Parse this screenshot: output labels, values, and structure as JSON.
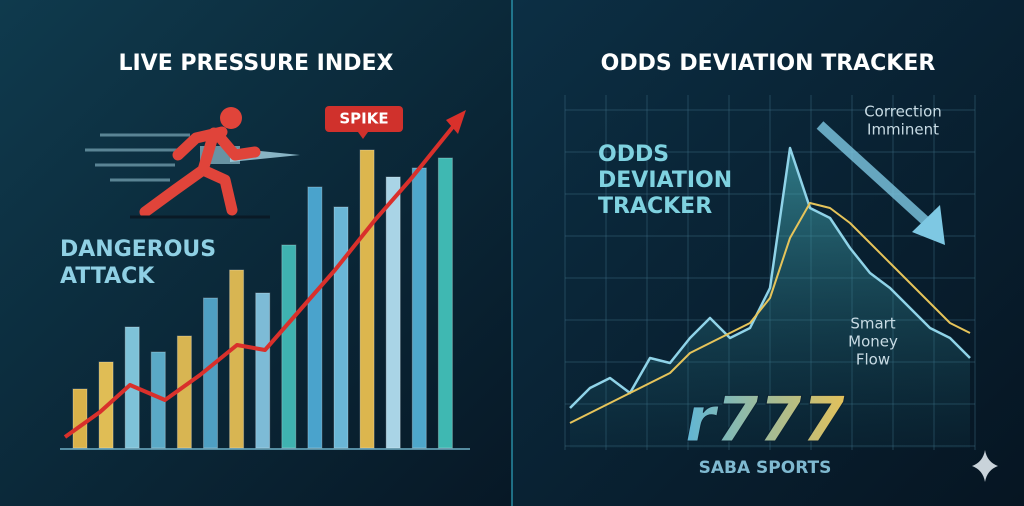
{
  "chart_data": [
    {
      "type": "bar",
      "title": "LIVE PRESSURE INDEX",
      "annotation": "SPIKE",
      "label_lines": [
        "DANGEROUS",
        "ATTACK"
      ],
      "values": [
        59,
        86,
        121,
        96,
        112,
        150,
        178,
        155,
        203,
        261,
        241,
        298,
        271,
        280,
        290
      ],
      "colors": [
        "#d9b24a",
        "#e0bd55",
        "#7ec2d8",
        "#5aa9c6",
        "#d8b552",
        "#4f9fc2",
        "#d8b552",
        "#7dbbd6",
        "#3fb2b0",
        "#4aa3cc",
        "#6ab6d6",
        "#dcb64e",
        "#a9d4e6",
        "#4ea7cb",
        "#3fb8b2"
      ],
      "trend": {
        "color": "#d9302b",
        "x": [
          15,
          50,
          80,
          115,
          150,
          187,
          215,
          250,
          285,
          325,
          360,
          410
        ],
        "values": [
          11,
          36,
          63,
          48,
          73,
          103,
          98,
          138,
          178,
          228,
          268,
          330
        ]
      },
      "xlim": [
        0,
        450
      ],
      "ylim": [
        0,
        340
      ]
    },
    {
      "type": "line",
      "title": "ODDS DEVIATION TRACKER",
      "label_lines": [
        "ODDS",
        "DEVIATION",
        "TRACKER"
      ],
      "annotations": [
        [
          "Correction",
          "Imminent"
        ],
        [
          "Smart",
          "Money",
          "Flow"
        ]
      ],
      "x": [
        0,
        20,
        40,
        60,
        80,
        100,
        120,
        140,
        160,
        180,
        200,
        220,
        240,
        260,
        280,
        300,
        320,
        340,
        360,
        380,
        400
      ],
      "series": [
        {
          "color": "#8fd3e8",
          "values": [
            40,
            60,
            70,
            55,
            90,
            85,
            110,
            130,
            110,
            120,
            160,
            300,
            240,
            230,
            200,
            175,
            160,
            140,
            120,
            110,
            90
          ]
        },
        {
          "color": "#e6c45a",
          "values": [
            25,
            35,
            45,
            55,
            65,
            75,
            95,
            105,
            115,
            125,
            150,
            210,
            245,
            240,
            225,
            205,
            185,
            165,
            145,
            125,
            115
          ]
        }
      ],
      "xlim": [
        0,
        400
      ],
      "ylim": [
        0,
        360
      ]
    }
  ],
  "brand": {
    "logo": "r777",
    "subtitle": "SABA SPORTS"
  }
}
